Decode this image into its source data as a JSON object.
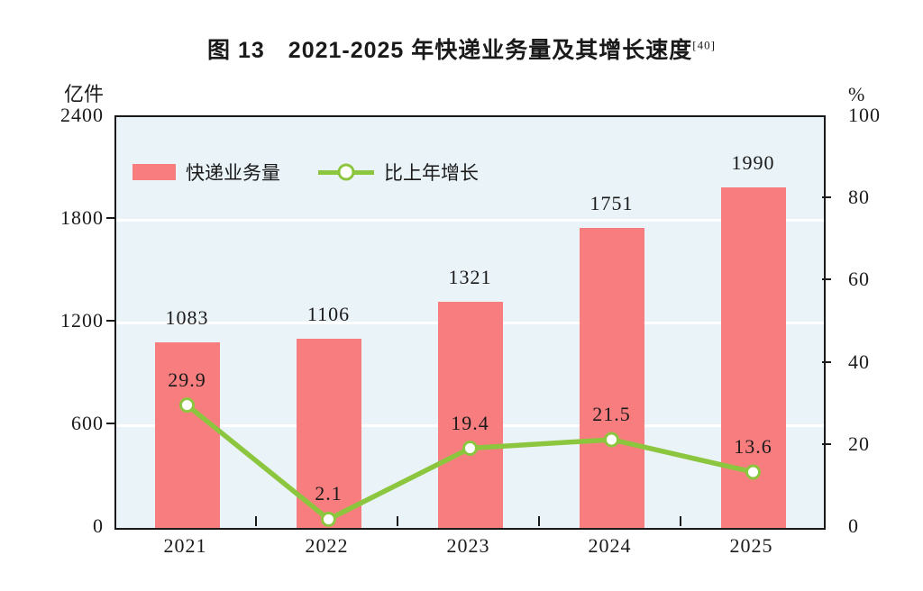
{
  "title": {
    "text": "图 13　2021-2025 年快递业务量及其增长速度",
    "superscript": "[40]"
  },
  "chart_data": {
    "type": "combo",
    "categories": [
      "2021",
      "2022",
      "2023",
      "2024",
      "2025"
    ],
    "series": [
      {
        "name": "快递业务量",
        "type": "bar",
        "axis": "left",
        "values": [
          1083,
          1106,
          1321,
          1751,
          1990
        ],
        "labels": [
          "1083",
          "1106",
          "1321",
          "1751",
          "1990"
        ],
        "color": "#f87d7f"
      },
      {
        "name": "比上年增长",
        "type": "line",
        "axis": "right",
        "values": [
          29.9,
          2.1,
          19.4,
          21.5,
          13.6
        ],
        "labels": [
          "29.9",
          "2.1",
          "19.4",
          "21.5",
          "13.6"
        ],
        "color": "#8cc63f",
        "marker": "circle-hollow"
      }
    ],
    "left_axis": {
      "unit": "亿件",
      "min": 0,
      "max": 2400,
      "ticks": [
        0,
        600,
        1200,
        1800,
        2400
      ]
    },
    "right_axis": {
      "unit": "%",
      "min": 0,
      "max": 100,
      "ticks": [
        0,
        20,
        40,
        60,
        80,
        100
      ]
    },
    "gridlines": {
      "left_values": [
        600,
        1200,
        1800
      ],
      "color": "#ffffff"
    },
    "colors": {
      "plot_bg": "#eaf3f8",
      "axis": "#1a1a1a",
      "text": "#1a1a1a"
    },
    "legend_position": "top-left-inside"
  }
}
